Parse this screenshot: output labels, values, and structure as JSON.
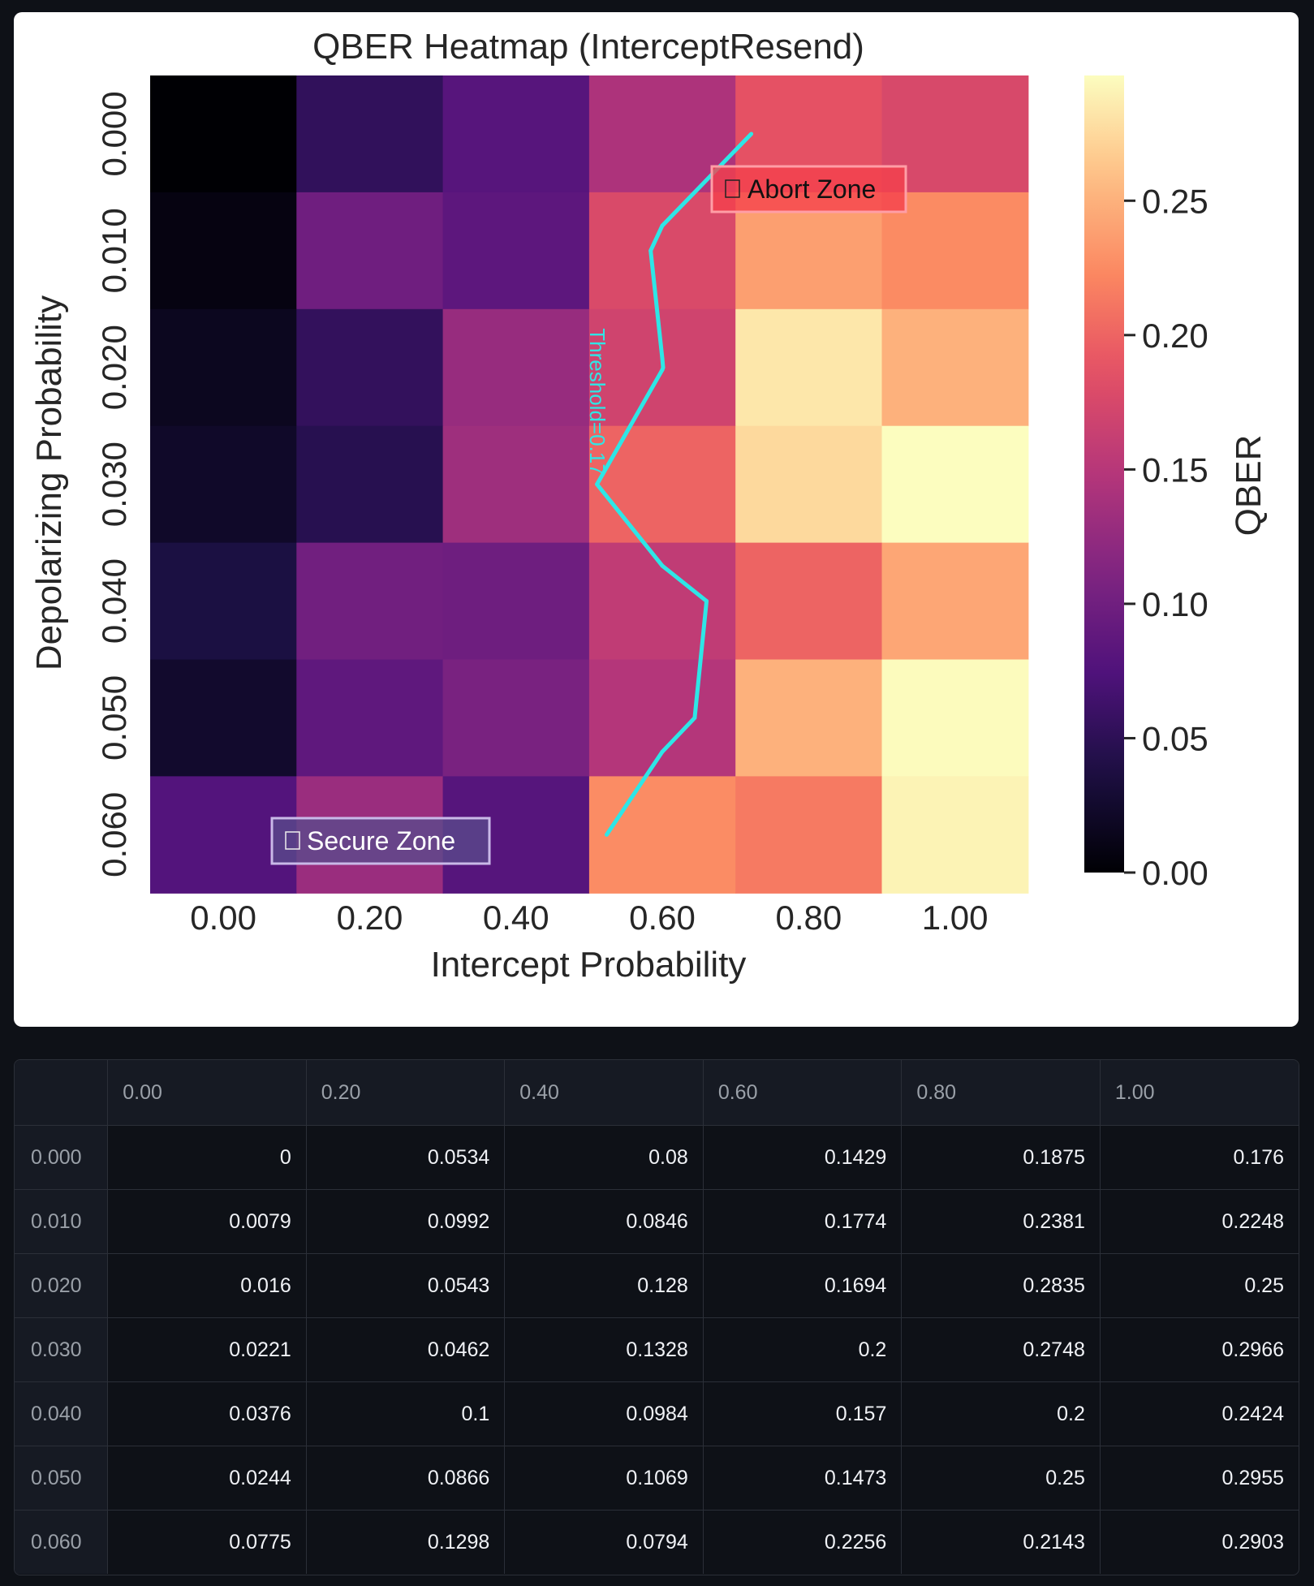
{
  "chart_data": {
    "type": "heatmap",
    "title": "QBER Heatmap (InterceptResend)",
    "xlabel": "Intercept Probability",
    "ylabel": "Depolarizing Probability",
    "x_categories": [
      "0.00",
      "0.20",
      "0.40",
      "0.60",
      "0.80",
      "1.00"
    ],
    "y_categories": [
      "0.000",
      "0.010",
      "0.020",
      "0.030",
      "0.040",
      "0.050",
      "0.060"
    ],
    "values": [
      [
        0,
        0.0534,
        0.08,
        0.1429,
        0.1875,
        0.176
      ],
      [
        0.0079,
        0.0992,
        0.0846,
        0.1774,
        0.2381,
        0.2248
      ],
      [
        0.016,
        0.0543,
        0.128,
        0.1694,
        0.2835,
        0.25
      ],
      [
        0.0221,
        0.0462,
        0.1328,
        0.2,
        0.2748,
        0.2966
      ],
      [
        0.0376,
        0.1,
        0.0984,
        0.157,
        0.2,
        0.2424
      ],
      [
        0.0244,
        0.0866,
        0.1069,
        0.1473,
        0.25,
        0.2955
      ],
      [
        0.0775,
        0.1298,
        0.0794,
        0.2256,
        0.2143,
        0.2903
      ]
    ],
    "colormap": "magma",
    "colorbar": {
      "label": "QBER",
      "range": [
        0,
        0.2966
      ],
      "ticks": [
        "0.00",
        "0.05",
        "0.10",
        "0.15",
        "0.20",
        "0.25"
      ]
    },
    "threshold": {
      "value": 0.17,
      "label": "Threshold=0.17",
      "color": "#2ee6e6"
    },
    "annotations": {
      "abort": {
        "text": "Abort Zone",
        "icon": "red-square-emoji"
      },
      "secure": {
        "text": "Secure Zone",
        "icon": "green-square-emoji"
      }
    }
  },
  "table": {
    "columns": [
      "",
      "0.00",
      "0.20",
      "0.40",
      "0.60",
      "0.80",
      "1.00"
    ],
    "rows": [
      {
        "index": "0.000",
        "values": [
          "0",
          "0.0534",
          "0.08",
          "0.1429",
          "0.1875",
          "0.176"
        ]
      },
      {
        "index": "0.010",
        "values": [
          "0.0079",
          "0.0992",
          "0.0846",
          "0.1774",
          "0.2381",
          "0.2248"
        ]
      },
      {
        "index": "0.020",
        "values": [
          "0.016",
          "0.0543",
          "0.128",
          "0.1694",
          "0.2835",
          "0.25"
        ]
      },
      {
        "index": "0.030",
        "values": [
          "0.0221",
          "0.0462",
          "0.1328",
          "0.2",
          "0.2748",
          "0.2966"
        ]
      },
      {
        "index": "0.040",
        "values": [
          "0.0376",
          "0.1",
          "0.0984",
          "0.157",
          "0.2",
          "0.2424"
        ]
      },
      {
        "index": "0.050",
        "values": [
          "0.0244",
          "0.0866",
          "0.1069",
          "0.1473",
          "0.25",
          "0.2955"
        ]
      },
      {
        "index": "0.060",
        "values": [
          "0.0775",
          "0.1298",
          "0.0794",
          "0.2256",
          "0.2143",
          "0.2903"
        ]
      }
    ]
  }
}
